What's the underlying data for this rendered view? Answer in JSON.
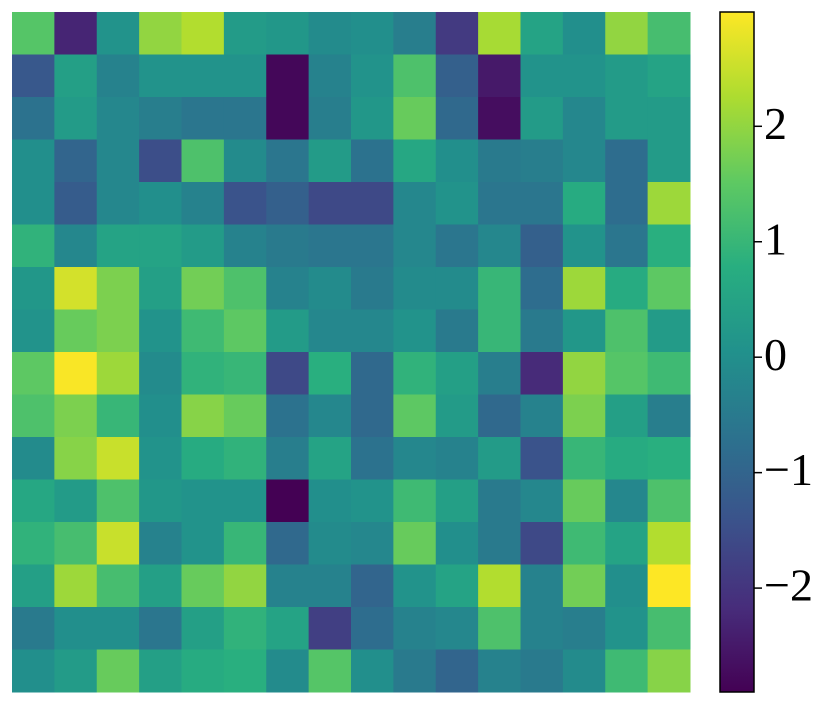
{
  "chart_data": {
    "type": "heatmap",
    "colormap": "viridis",
    "values": [
      [
        1.4,
        -2.3,
        0.1,
        2.0,
        2.3,
        0.3,
        0.2,
        -0.1,
        0.0,
        -0.4,
        -1.9,
        2.2,
        0.5,
        0.0,
        2.0,
        1.2
      ],
      [
        -1.3,
        0.4,
        -0.3,
        0.1,
        0.1,
        0.1,
        -2.8,
        -0.3,
        0.1,
        1.3,
        -1.1,
        -2.5,
        0.1,
        0.1,
        0.3,
        0.5
      ],
      [
        -0.7,
        0.3,
        -0.2,
        -0.4,
        -0.6,
        -0.6,
        -2.8,
        -0.4,
        0.2,
        1.6,
        -0.9,
        -2.7,
        0.3,
        -0.2,
        0.3,
        0.3
      ],
      [
        0.0,
        -1.0,
        -0.2,
        -1.5,
        1.3,
        -0.1,
        -0.6,
        0.3,
        -0.7,
        0.6,
        0.0,
        -0.5,
        -0.4,
        -0.2,
        -0.8,
        0.3
      ],
      [
        0.0,
        -1.2,
        -0.2,
        0.0,
        -0.3,
        -1.4,
        -1.1,
        -1.6,
        -1.6,
        -0.2,
        0.1,
        -0.6,
        -0.6,
        0.7,
        -0.8,
        2.1
      ],
      [
        0.9,
        -0.2,
        0.5,
        0.5,
        0.3,
        -0.3,
        -0.5,
        -0.6,
        -0.6,
        -0.2,
        -0.6,
        -0.2,
        -1.1,
        0.1,
        -0.6,
        0.8
      ],
      [
        0.2,
        2.6,
        1.8,
        0.4,
        1.7,
        1.3,
        -0.3,
        -0.1,
        -0.5,
        -0.1,
        -0.1,
        1.0,
        -0.8,
        2.1,
        0.7,
        1.5
      ],
      [
        0.1,
        1.6,
        1.8,
        0.1,
        1.1,
        1.5,
        0.3,
        -0.2,
        -0.2,
        0.1,
        -0.5,
        1.0,
        -0.5,
        0.2,
        1.3,
        0.3
      ],
      [
        1.5,
        2.95,
        2.1,
        -0.1,
        0.9,
        1.0,
        -1.6,
        0.8,
        -0.9,
        0.9,
        0.4,
        -0.4,
        -2.2,
        2.0,
        1.4,
        1.1
      ],
      [
        1.3,
        1.8,
        1.0,
        0.0,
        1.9,
        1.6,
        -0.7,
        -0.2,
        -0.9,
        1.5,
        0.3,
        -0.9,
        -0.3,
        1.8,
        0.4,
        -0.4
      ],
      [
        -0.1,
        1.9,
        2.5,
        0.1,
        0.7,
        0.9,
        -0.4,
        0.5,
        -0.7,
        -0.2,
        -0.3,
        0.3,
        -1.4,
        1.0,
        0.7,
        0.8
      ],
      [
        0.6,
        0.3,
        1.3,
        0.2,
        0.1,
        0.1,
        -2.9,
        0.0,
        0.1,
        1.1,
        0.4,
        -0.5,
        -0.2,
        1.6,
        -0.2,
        1.3
      ],
      [
        0.9,
        1.2,
        2.5,
        -0.3,
        0.1,
        1.0,
        -0.9,
        -0.1,
        -0.2,
        1.6,
        0.0,
        -0.5,
        -1.6,
        1.1,
        0.5,
        2.3
      ],
      [
        0.4,
        2.1,
        1.2,
        0.4,
        1.6,
        2.0,
        -0.3,
        -0.3,
        -1.0,
        0.1,
        0.5,
        2.3,
        -0.3,
        1.7,
        0.0,
        2.99
      ],
      [
        -0.5,
        0.0,
        0.0,
        -0.6,
        0.4,
        0.9,
        0.5,
        -1.8,
        -0.8,
        -0.3,
        -0.2,
        1.3,
        -0.3,
        -0.4,
        0.1,
        1.2
      ],
      [
        0.0,
        0.3,
        1.6,
        0.4,
        0.7,
        0.8,
        -0.1,
        1.4,
        0.0,
        -0.5,
        -1.0,
        -0.3,
        -0.5,
        -0.1,
        1.1,
        1.9
      ]
    ],
    "vlim": [
      -2.9,
      2.99
    ],
    "colorbar_ticks": [
      {
        "value": -2,
        "label": "−2"
      },
      {
        "value": -1,
        "label": "−1"
      },
      0,
      1,
      2
    ]
  }
}
